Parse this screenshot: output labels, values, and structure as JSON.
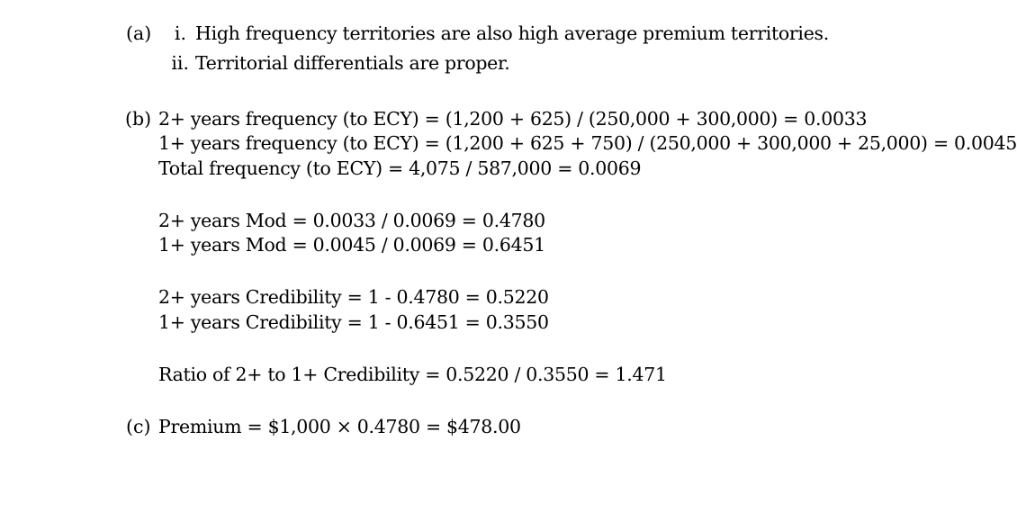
{
  "part_a": {
    "label": "(a)",
    "items": [
      {
        "num": "i.",
        "text": "High frequency territories are also high average premium territories."
      },
      {
        "num": "ii.",
        "text": "Territorial differentials are proper."
      }
    ]
  },
  "part_b": {
    "label": "(b)",
    "frequency": [
      "2+ years frequency (to ECY) = (1,200 + 625) / (250,000 + 300,000) = 0.0033",
      "1+ years frequency (to ECY) = (1,200 + 625 + 750) / (250,000 + 300,000 + 25,000) = 0.0045",
      "Total frequency (to ECY) = 4,075 / 587,000 = 0.0069"
    ],
    "mod": [
      "2+ years Mod = 0.0033 / 0.0069 = 0.4780",
      "1+ years Mod = 0.0045 / 0.0069 = 0.6451"
    ],
    "credibility": [
      "2+ years Credibility = 1 - 0.4780 = 0.5220",
      "1+ years Credibility = 1 - 0.6451 = 0.3550"
    ],
    "ratio": "Ratio of 2+ to 1+ Credibility = 0.5220 / 0.3550 = 1.471"
  },
  "part_c": {
    "label": "(c)",
    "text": "Premium = $1,000 × 0.4780 = $478.00"
  }
}
